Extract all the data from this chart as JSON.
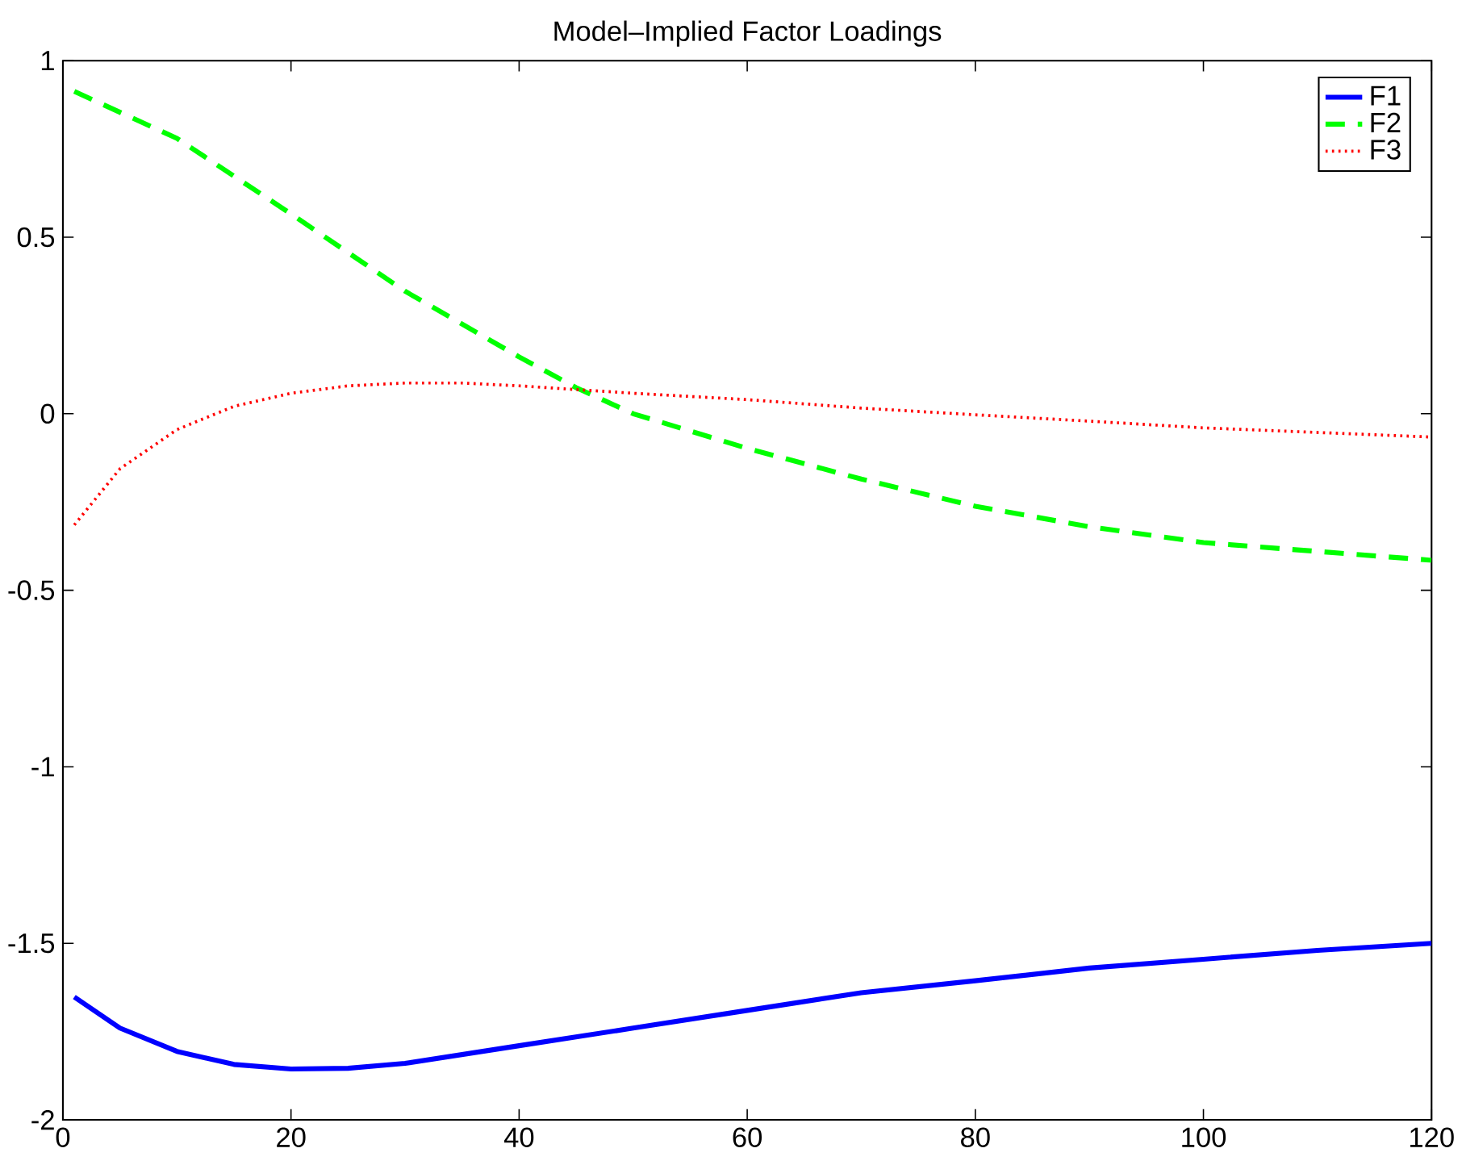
{
  "chart_data": {
    "type": "line",
    "title": "Model–Implied Factor Loadings",
    "xlim": [
      0,
      120
    ],
    "ylim": [
      -2,
      1
    ],
    "xticks": [
      0,
      20,
      40,
      60,
      80,
      100,
      120
    ],
    "yticks": [
      -2,
      -1.5,
      -1,
      -0.5,
      0,
      0.5,
      1
    ],
    "legend": "top right",
    "grid": false,
    "series": [
      {
        "name": "F1",
        "color": "#0000ff",
        "line_style": "solid",
        "x": [
          1,
          5,
          10,
          15,
          20,
          25,
          30,
          40,
          50,
          60,
          70,
          80,
          90,
          100,
          110,
          120
        ],
        "values": [
          -1.652,
          -1.74,
          -1.806,
          -1.843,
          -1.856,
          -1.854,
          -1.84,
          -1.79,
          -1.74,
          -1.69,
          -1.64,
          -1.606,
          -1.57,
          -1.545,
          -1.52,
          -1.5
        ]
      },
      {
        "name": "F2",
        "color": "#00ff00",
        "line_style": "dashed",
        "x": [
          1,
          10,
          20,
          30,
          40,
          45,
          50,
          60,
          70,
          80,
          90,
          100,
          110,
          120
        ],
        "values": [
          0.913,
          0.78,
          0.566,
          0.347,
          0.161,
          0.074,
          0.0,
          -0.098,
          -0.185,
          -0.262,
          -0.32,
          -0.365,
          -0.39,
          -0.415
        ]
      },
      {
        "name": "F3",
        "color": "#ff0000",
        "line_style": "dotted",
        "x": [
          1,
          5,
          10,
          15,
          20,
          25,
          30,
          35,
          40,
          50,
          60,
          70,
          80,
          90,
          100,
          110,
          120
        ],
        "values": [
          -0.315,
          -0.156,
          -0.045,
          0.021,
          0.058,
          0.079,
          0.087,
          0.087,
          0.079,
          0.058,
          0.04,
          0.016,
          -0.003,
          -0.021,
          -0.04,
          -0.053,
          -0.066
        ]
      }
    ]
  }
}
